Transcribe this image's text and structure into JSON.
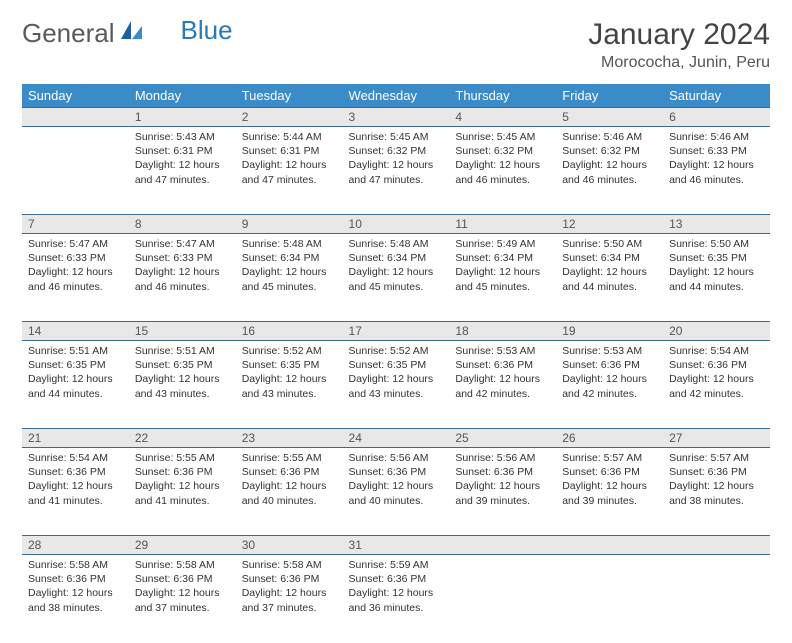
{
  "logo": {
    "text1": "General",
    "text2": "Blue"
  },
  "title": "January 2024",
  "location": "Morococha, Junin, Peru",
  "colors": {
    "header_bg": "#3b8bc9",
    "header_fg": "#ffffff",
    "daynum_bg": "#e8e8e8",
    "border": "#3b6a8f",
    "logo_gray": "#5a5a5a",
    "logo_blue": "#2a7ab8"
  },
  "fonts": {
    "title_size": 30,
    "location_size": 16,
    "dayheader_size": 13,
    "cell_size": 10.5
  },
  "weekdays": [
    "Sunday",
    "Monday",
    "Tuesday",
    "Wednesday",
    "Thursday",
    "Friday",
    "Saturday"
  ],
  "start_offset": 1,
  "days": [
    {
      "n": 1,
      "sr": "5:43 AM",
      "ss": "6:31 PM",
      "dl": "12 hours and 47 minutes."
    },
    {
      "n": 2,
      "sr": "5:44 AM",
      "ss": "6:31 PM",
      "dl": "12 hours and 47 minutes."
    },
    {
      "n": 3,
      "sr": "5:45 AM",
      "ss": "6:32 PM",
      "dl": "12 hours and 47 minutes."
    },
    {
      "n": 4,
      "sr": "5:45 AM",
      "ss": "6:32 PM",
      "dl": "12 hours and 46 minutes."
    },
    {
      "n": 5,
      "sr": "5:46 AM",
      "ss": "6:32 PM",
      "dl": "12 hours and 46 minutes."
    },
    {
      "n": 6,
      "sr": "5:46 AM",
      "ss": "6:33 PM",
      "dl": "12 hours and 46 minutes."
    },
    {
      "n": 7,
      "sr": "5:47 AM",
      "ss": "6:33 PM",
      "dl": "12 hours and 46 minutes."
    },
    {
      "n": 8,
      "sr": "5:47 AM",
      "ss": "6:33 PM",
      "dl": "12 hours and 46 minutes."
    },
    {
      "n": 9,
      "sr": "5:48 AM",
      "ss": "6:34 PM",
      "dl": "12 hours and 45 minutes."
    },
    {
      "n": 10,
      "sr": "5:48 AM",
      "ss": "6:34 PM",
      "dl": "12 hours and 45 minutes."
    },
    {
      "n": 11,
      "sr": "5:49 AM",
      "ss": "6:34 PM",
      "dl": "12 hours and 45 minutes."
    },
    {
      "n": 12,
      "sr": "5:50 AM",
      "ss": "6:34 PM",
      "dl": "12 hours and 44 minutes."
    },
    {
      "n": 13,
      "sr": "5:50 AM",
      "ss": "6:35 PM",
      "dl": "12 hours and 44 minutes."
    },
    {
      "n": 14,
      "sr": "5:51 AM",
      "ss": "6:35 PM",
      "dl": "12 hours and 44 minutes."
    },
    {
      "n": 15,
      "sr": "5:51 AM",
      "ss": "6:35 PM",
      "dl": "12 hours and 43 minutes."
    },
    {
      "n": 16,
      "sr": "5:52 AM",
      "ss": "6:35 PM",
      "dl": "12 hours and 43 minutes."
    },
    {
      "n": 17,
      "sr": "5:52 AM",
      "ss": "6:35 PM",
      "dl": "12 hours and 43 minutes."
    },
    {
      "n": 18,
      "sr": "5:53 AM",
      "ss": "6:36 PM",
      "dl": "12 hours and 42 minutes."
    },
    {
      "n": 19,
      "sr": "5:53 AM",
      "ss": "6:36 PM",
      "dl": "12 hours and 42 minutes."
    },
    {
      "n": 20,
      "sr": "5:54 AM",
      "ss": "6:36 PM",
      "dl": "12 hours and 42 minutes."
    },
    {
      "n": 21,
      "sr": "5:54 AM",
      "ss": "6:36 PM",
      "dl": "12 hours and 41 minutes."
    },
    {
      "n": 22,
      "sr": "5:55 AM",
      "ss": "6:36 PM",
      "dl": "12 hours and 41 minutes."
    },
    {
      "n": 23,
      "sr": "5:55 AM",
      "ss": "6:36 PM",
      "dl": "12 hours and 40 minutes."
    },
    {
      "n": 24,
      "sr": "5:56 AM",
      "ss": "6:36 PM",
      "dl": "12 hours and 40 minutes."
    },
    {
      "n": 25,
      "sr": "5:56 AM",
      "ss": "6:36 PM",
      "dl": "12 hours and 39 minutes."
    },
    {
      "n": 26,
      "sr": "5:57 AM",
      "ss": "6:36 PM",
      "dl": "12 hours and 39 minutes."
    },
    {
      "n": 27,
      "sr": "5:57 AM",
      "ss": "6:36 PM",
      "dl": "12 hours and 38 minutes."
    },
    {
      "n": 28,
      "sr": "5:58 AM",
      "ss": "6:36 PM",
      "dl": "12 hours and 38 minutes."
    },
    {
      "n": 29,
      "sr": "5:58 AM",
      "ss": "6:36 PM",
      "dl": "12 hours and 37 minutes."
    },
    {
      "n": 30,
      "sr": "5:58 AM",
      "ss": "6:36 PM",
      "dl": "12 hours and 37 minutes."
    },
    {
      "n": 31,
      "sr": "5:59 AM",
      "ss": "6:36 PM",
      "dl": "12 hours and 36 minutes."
    }
  ],
  "labels": {
    "sunrise": "Sunrise:",
    "sunset": "Sunset:",
    "daylight": "Daylight:"
  }
}
